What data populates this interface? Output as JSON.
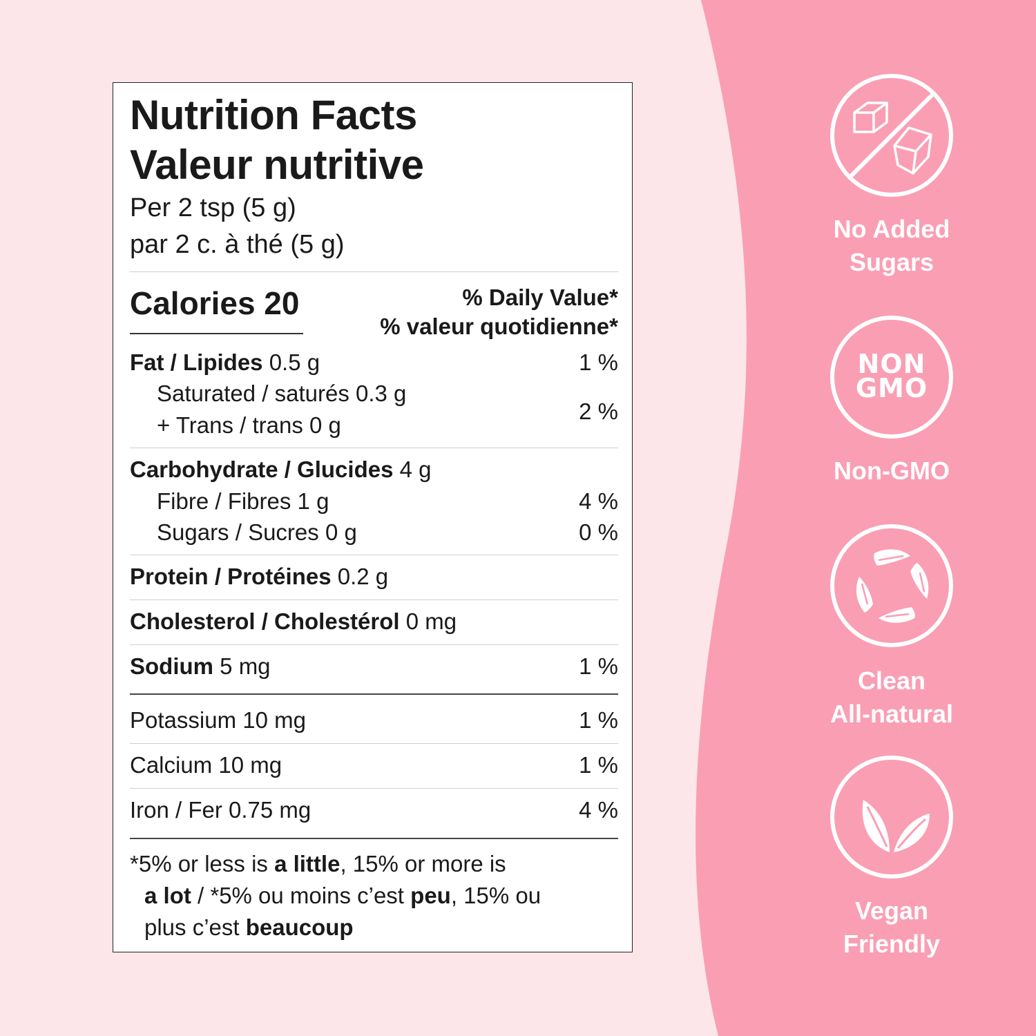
{
  "colors": {
    "background": "#fde6e9",
    "accent_pink": "#fa9eb4",
    "label_background": "#ffffff",
    "text": "#1a1a1a"
  },
  "label": {
    "title_en": "Nutrition Facts",
    "title_fr": "Valeur nutritive",
    "serving_en": "Per 2 tsp (5 g)",
    "serving_fr": "par 2 c. à thé (5 g)",
    "calories": "Calories 20",
    "dv_en": "% Daily Value*",
    "dv_fr": "% valeur quotidienne*",
    "fat": {
      "name": "Fat / Lipides",
      "amount": " 0.5 g",
      "dv": "1 %"
    },
    "saturated": {
      "text": "Saturated / saturés 0.3 g"
    },
    "trans": {
      "text": "+ Trans / trans 0 g"
    },
    "sat_trans_dv": "2 %",
    "carb": {
      "name": "Carbohydrate / Glucides",
      "amount": " 4 g"
    },
    "fibre": {
      "text": "Fibre / Fibres 1 g",
      "dv": "4 %"
    },
    "sugars": {
      "text": "Sugars / Sucres 0 g",
      "dv": "0 %"
    },
    "protein": {
      "name": "Protein / Protéines",
      "amount": " 0.2 g"
    },
    "cholesterol": {
      "name": "Cholesterol / Cholestérol",
      "amount": " 0 mg"
    },
    "sodium": {
      "name": "Sodium",
      "amount": " 5 mg",
      "dv": "1 %"
    },
    "potassium": {
      "text": "Potassium 10 mg",
      "dv": "1 %"
    },
    "calcium": {
      "text": "Calcium 10 mg",
      "dv": "1 %"
    },
    "iron": {
      "text": "Iron / Fer 0.75 mg",
      "dv": "4 %"
    },
    "footnote": {
      "p1": "*5% or less is ",
      "b1": "a little",
      "p2": ", 15% or more is",
      "b2": "a lot",
      "p3": " / *5% ou moins c’est ",
      "b3": "peu",
      "p4": ", 15% ou",
      "p5": "plus c’est ",
      "b4": "beaucoup"
    }
  },
  "badges": [
    {
      "icon": "no-sugar-cubes-icon",
      "line1": "No Added",
      "line2": "Sugars"
    },
    {
      "icon": "non-gmo-icon",
      "inner_line1": "NON",
      "inner_line2": "GMO",
      "line1": "Non-GMO"
    },
    {
      "icon": "recycle-leaves-icon",
      "line1": "Clean",
      "line2": "All-natural"
    },
    {
      "icon": "leaves-icon",
      "line1": "Vegan",
      "line2": "Friendly"
    }
  ]
}
